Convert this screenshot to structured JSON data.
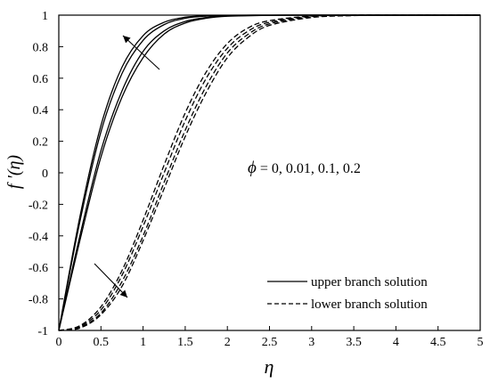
{
  "chart_data": {
    "type": "line",
    "xlabel": "η",
    "ylabel": "f ′(η)",
    "xlim": [
      0,
      5
    ],
    "ylim": [
      -1,
      1
    ],
    "xticks": [
      "0",
      "0.5",
      "1",
      "1.5",
      "2",
      "2.5",
      "3",
      "3.5",
      "4",
      "4.5",
      "5"
    ],
    "yticks": [
      "-1",
      "-0.8",
      "-0.6",
      "-0.4",
      "-0.2",
      "0",
      "0.2",
      "0.4",
      "0.6",
      "0.8",
      "1"
    ],
    "grid": false,
    "legend_position": "bottom-right",
    "legend": [
      {
        "label": "upper branch solution",
        "style": "solid"
      },
      {
        "label": "lower branch solution",
        "style": "dashed"
      }
    ],
    "annotation": {
      "symbol": "ϕ",
      "text": " = 0, 0.01, 0.1, 0.2"
    },
    "series": [
      {
        "branch": "upper",
        "style": "solid",
        "x": [
          0,
          0.25,
          0.5,
          0.75,
          1,
          1.25,
          1.5,
          1.75,
          2,
          2.5,
          3,
          5
        ],
        "y": [
          -1,
          -0.28,
          0.3,
          0.67,
          0.87,
          0.955,
          0.987,
          0.996,
          0.999,
          1,
          1,
          1
        ]
      },
      {
        "branch": "upper",
        "style": "solid",
        "x": [
          0,
          0.25,
          0.5,
          0.75,
          1,
          1.25,
          1.5,
          1.75,
          2,
          2.5,
          3,
          5
        ],
        "y": [
          -1,
          -0.31,
          0.26,
          0.63,
          0.84,
          0.94,
          0.98,
          0.994,
          0.998,
          1,
          1,
          1
        ]
      },
      {
        "branch": "upper",
        "style": "solid",
        "x": [
          0,
          0.25,
          0.5,
          0.75,
          1,
          1.25,
          1.5,
          1.75,
          2,
          2.5,
          3,
          5
        ],
        "y": [
          -1,
          -0.4,
          0.14,
          0.52,
          0.77,
          0.9,
          0.96,
          0.985,
          0.995,
          0.999,
          1,
          1
        ]
      },
      {
        "branch": "upper",
        "style": "solid",
        "x": [
          0,
          0.25,
          0.5,
          0.75,
          1,
          1.25,
          1.5,
          1.75,
          2,
          2.5,
          3,
          5
        ],
        "y": [
          -1,
          -0.43,
          0.1,
          0.48,
          0.73,
          0.88,
          0.95,
          0.98,
          0.993,
          0.999,
          1,
          1
        ]
      },
      {
        "branch": "lower",
        "style": "dashed",
        "x": [
          0,
          0.25,
          0.5,
          0.75,
          1,
          1.25,
          1.5,
          1.75,
          2,
          2.25,
          2.5,
          3,
          3.5,
          4,
          5
        ],
        "y": [
          -1,
          -0.97,
          -0.85,
          -0.62,
          -0.3,
          0.05,
          0.38,
          0.64,
          0.82,
          0.92,
          0.965,
          0.995,
          1,
          1,
          1
        ]
      },
      {
        "branch": "lower",
        "style": "dashed",
        "x": [
          0,
          0.25,
          0.5,
          0.75,
          1,
          1.25,
          1.5,
          1.75,
          2,
          2.25,
          2.5,
          3,
          3.5,
          4,
          5
        ],
        "y": [
          -1,
          -0.975,
          -0.87,
          -0.65,
          -0.34,
          0.0,
          0.33,
          0.6,
          0.79,
          0.9,
          0.955,
          0.993,
          1,
          1,
          1
        ]
      },
      {
        "branch": "lower",
        "style": "dashed",
        "x": [
          0,
          0.25,
          0.5,
          0.75,
          1,
          1.25,
          1.5,
          1.75,
          2,
          2.25,
          2.5,
          3,
          3.5,
          4,
          5
        ],
        "y": [
          -1,
          -0.98,
          -0.89,
          -0.69,
          -0.4,
          -0.06,
          0.27,
          0.55,
          0.76,
          0.88,
          0.945,
          0.99,
          0.998,
          1,
          1
        ]
      },
      {
        "branch": "lower",
        "style": "dashed",
        "x": [
          0,
          0.25,
          0.5,
          0.75,
          1,
          1.25,
          1.5,
          1.75,
          2,
          2.25,
          2.5,
          3,
          3.5,
          4,
          5
        ],
        "y": [
          -1,
          -0.985,
          -0.9,
          -0.72,
          -0.43,
          -0.1,
          0.23,
          0.51,
          0.73,
          0.86,
          0.935,
          0.985,
          0.997,
          1,
          1
        ]
      }
    ]
  }
}
